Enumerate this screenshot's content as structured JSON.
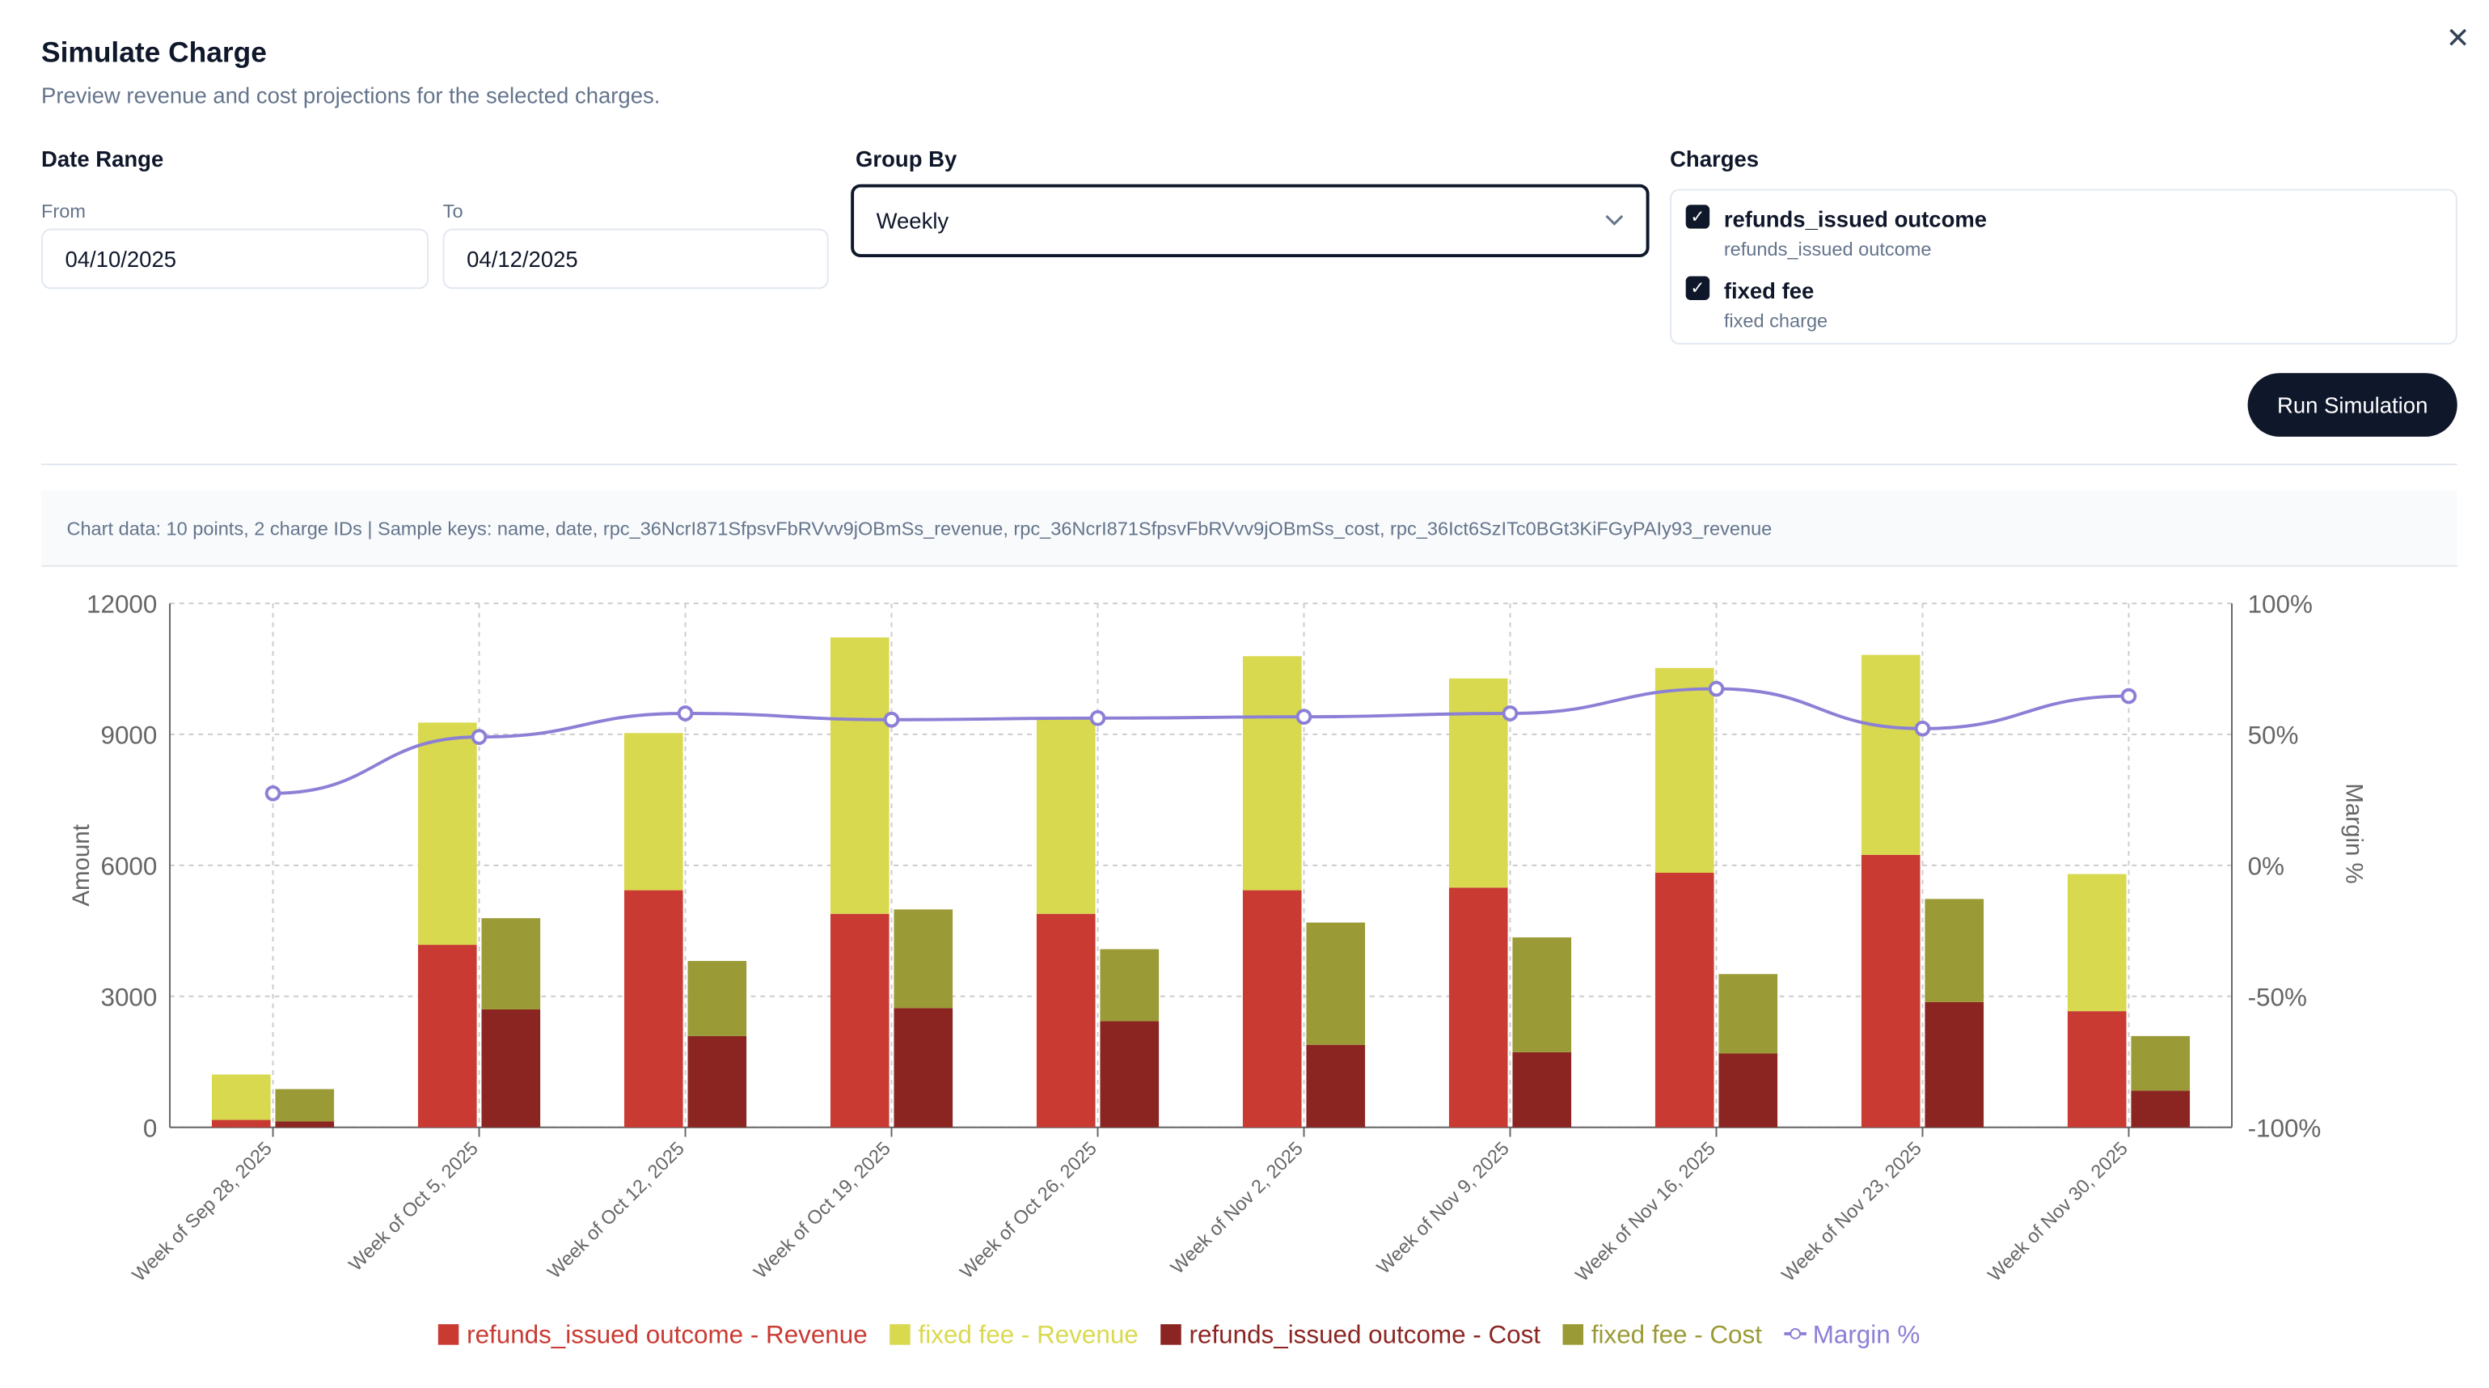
{
  "dialog": {
    "title": "Simulate Charge",
    "subtitle": "Preview revenue and cost projections for the selected charges.",
    "close_icon": "close-icon"
  },
  "date_range": {
    "label": "Date Range",
    "from_label": "From",
    "from_value": "04/10/2025",
    "to_label": "To",
    "to_value": "04/12/2025"
  },
  "group_by": {
    "label": "Group By",
    "value": "Weekly"
  },
  "charges": {
    "label": "Charges",
    "items": [
      {
        "name": "refunds_issued outcome",
        "desc": "refunds_issued outcome",
        "checked": true
      },
      {
        "name": "fixed fee",
        "desc": "fixed charge",
        "checked": true
      }
    ]
  },
  "run_button": "Run Simulation",
  "info_text": "Chart data: 10 points, 2 charge IDs  | Sample keys: name, date, rpc_36NcrI871SfpsvFbRVvv9jOBmSs_revenue, rpc_36NcrI871SfpsvFbRVvv9jOBmSs_cost, rpc_36Ict6SzITc0BGt3KiFGyPAIy93_revenue",
  "chart_data": {
    "type": "bar",
    "stacked": true,
    "categories": [
      "Week of Sep 28, 2025",
      "Week of Oct 5, 2025",
      "Week of Oct 12, 2025",
      "Week of Oct 19, 2025",
      "Week of Oct 26, 2025",
      "Week of Nov 2, 2025",
      "Week of Nov 9, 2025",
      "Week of Nov 16, 2025",
      "Week of Nov 23, 2025",
      "Week of Nov 30, 2025"
    ],
    "ylabel": "Amount",
    "y2label": "Margin %",
    "ylim": [
      0,
      12000
    ],
    "yticks": [
      "0",
      "3000",
      "6000",
      "9000",
      "12000"
    ],
    "y2lim": [
      -100,
      100
    ],
    "y2ticks": [
      "-100%",
      "-50%",
      "0%",
      "50%",
      "100%"
    ],
    "grid": true,
    "legend": "bottom",
    "series": [
      {
        "name": "refunds_issued outcome - Revenue",
        "stack": "revenue",
        "color": "#c93a33",
        "values": [
          170,
          4180,
          5430,
          4890,
          4890,
          5430,
          5490,
          5830,
          6240,
          2660
        ]
      },
      {
        "name": "fixed fee - Revenue",
        "stack": "revenue",
        "color": "#d9d94f",
        "values": [
          1040,
          5090,
          3600,
          6330,
          4450,
          5360,
          4790,
          4690,
          4580,
          3140
        ]
      },
      {
        "name": "refunds_issued outcome - Cost",
        "stack": "cost",
        "color": "#8b2522",
        "values": [
          135,
          2700,
          2090,
          2730,
          2430,
          1890,
          1720,
          1690,
          2870,
          840
        ]
      },
      {
        "name": "fixed fee - Cost",
        "stack": "cost",
        "color": "#9a9a36",
        "values": [
          740,
          2090,
          1720,
          2260,
          1650,
          2800,
          2630,
          1820,
          2360,
          1250
        ]
      },
      {
        "name": "Margin %",
        "type": "line",
        "axis": "right",
        "color": "#8b7fd6",
        "values": [
          27.5,
          49,
          58,
          55.6,
          56.2,
          56.7,
          58,
          67.4,
          52.2,
          64.6
        ]
      }
    ]
  }
}
